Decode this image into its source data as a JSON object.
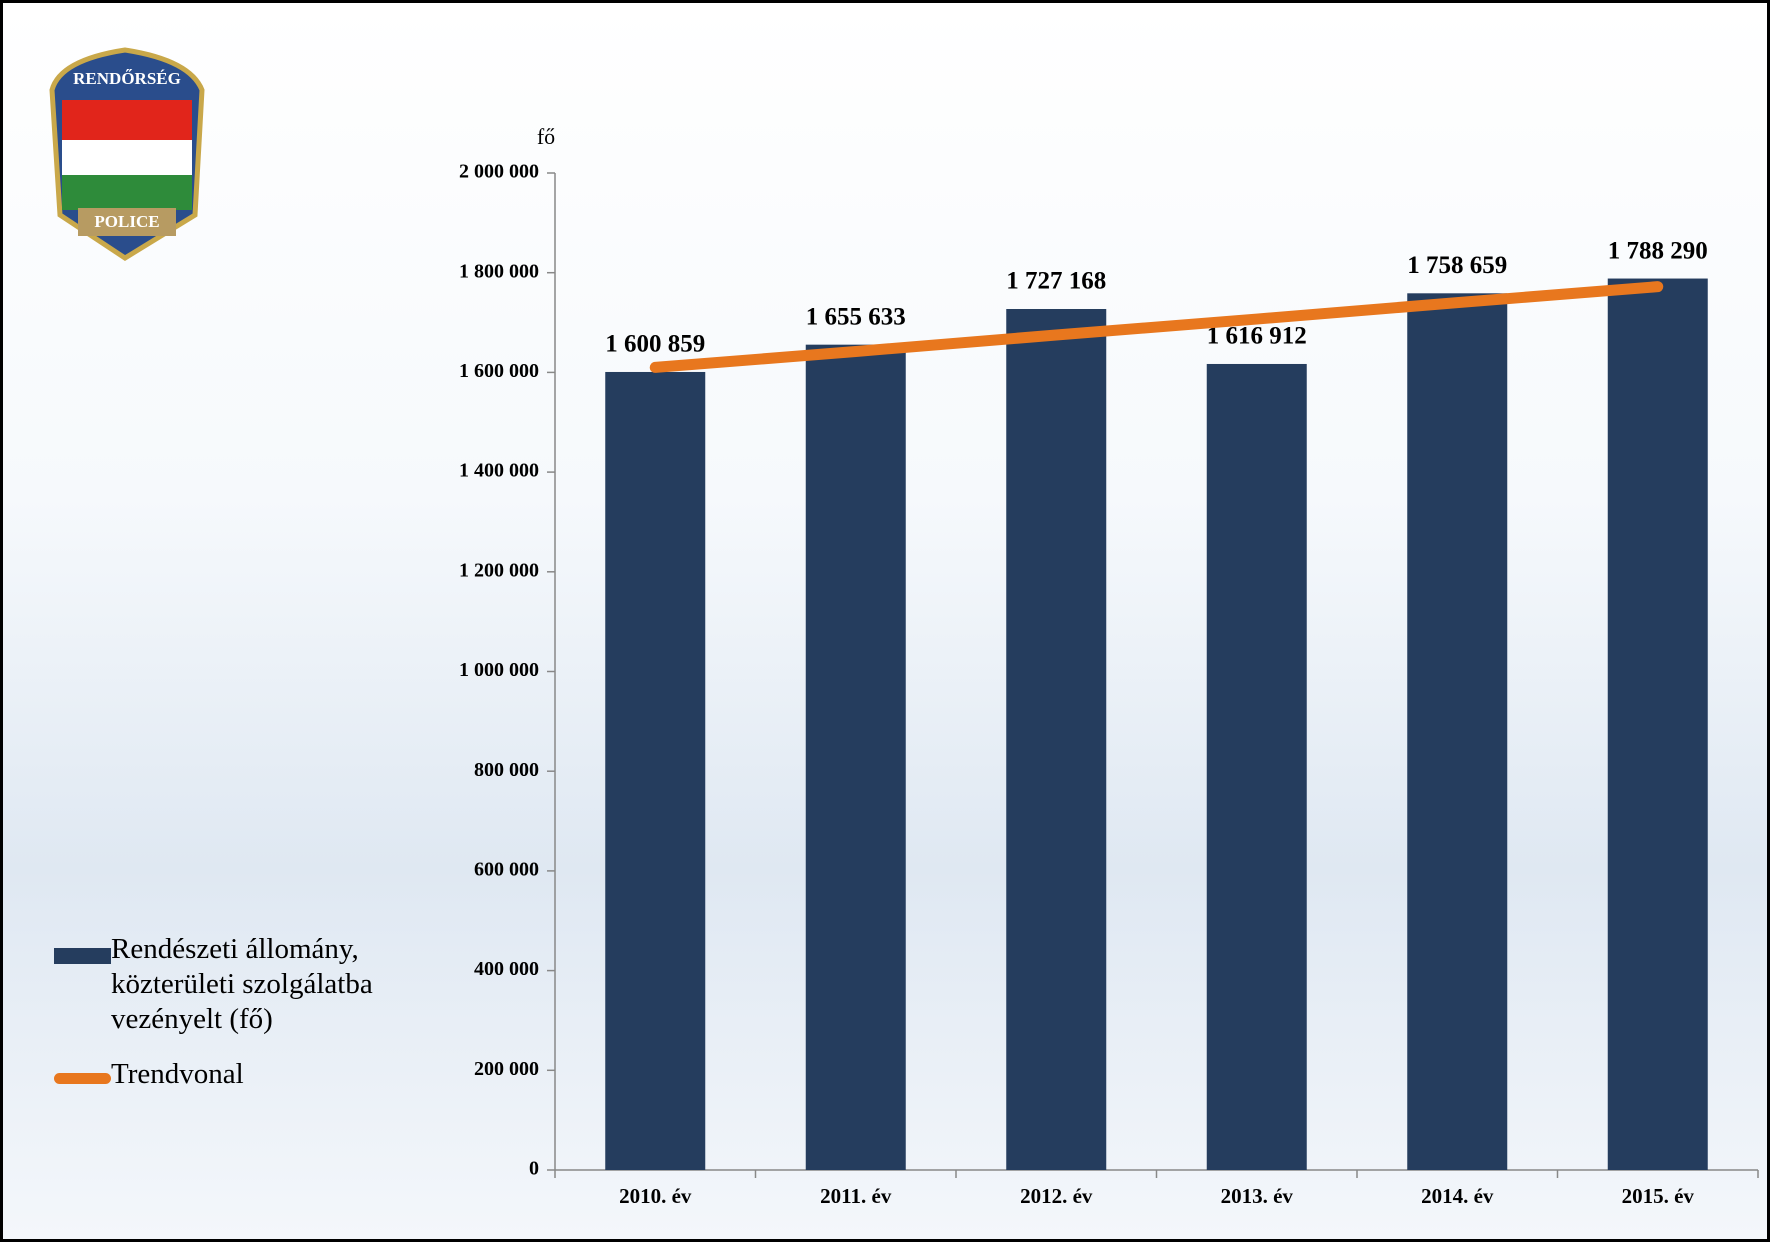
{
  "logo": {
    "top": "RENDŐRSÉG",
    "bottom": "POLICE"
  },
  "chart_data": {
    "type": "bar",
    "y_label": "fő",
    "categories": [
      "2010. év",
      "2011. év",
      "2012. év",
      "2013. év",
      "2014. év",
      "2015. év"
    ],
    "series": [
      {
        "name": "Rendészeti állomány, közterületi szolgálatba vezényelt (fő)",
        "color": "#253d5e",
        "type": "bar",
        "values": [
          1600859,
          1655633,
          1727168,
          1616912,
          1758659,
          1788290
        ],
        "value_labels": [
          "1 600 859",
          "1 655 633",
          "1 727 168",
          "1 616 912",
          "1 758 659",
          "1 788 290"
        ]
      },
      {
        "name": "Trendvonal",
        "color": "#e8771e",
        "type": "line",
        "values": [
          1610000,
          1642000,
          1675000,
          1707000,
          1740000,
          1772000
        ]
      }
    ],
    "ylim": [
      0,
      2000000
    ],
    "yticks": [
      0,
      {
        "value": 200000,
        "label": "200 000"
      },
      {
        "value": 400000,
        "label": "400 000"
      },
      {
        "value": 600000,
        "label": "600 000"
      },
      {
        "value": 800000,
        "label": "800 000"
      },
      {
        "value": 1000000,
        "label": "1 000 000"
      },
      {
        "value": 1200000,
        "label": "1 200 000"
      },
      {
        "value": 1400000,
        "label": "1 400 000"
      },
      {
        "value": 1600000,
        "label": "1 600 000"
      },
      {
        "value": 1800000,
        "label": "1 800 000"
      },
      {
        "value": 2000000,
        "label": "2 000 000"
      }
    ],
    "grid": false
  }
}
